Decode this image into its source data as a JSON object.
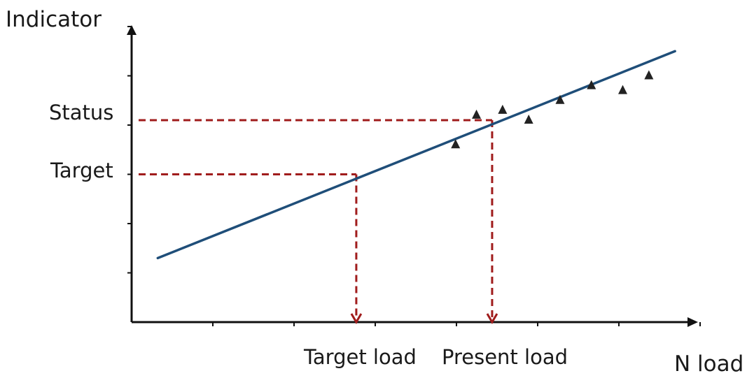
{
  "labels": {
    "y_axis": "Indicator",
    "x_axis": "N load",
    "status": "Status",
    "target": "Target",
    "target_load": "Target load",
    "present_load": "Present load"
  },
  "colors": {
    "axis": "#111111",
    "trend_line": "#1f4e79",
    "guide_lines": "#a01c1c",
    "points": "#222222",
    "text": "#1a1a1a"
  },
  "chart_data": {
    "type": "scatter",
    "xlabel": "N load",
    "ylabel": "Indicator",
    "points": [
      {
        "x": 6.2,
        "y": 3.6
      },
      {
        "x": 6.6,
        "y": 4.2
      },
      {
        "x": 7.1,
        "y": 4.3
      },
      {
        "x": 7.6,
        "y": 4.1
      },
      {
        "x": 8.2,
        "y": 4.5
      },
      {
        "x": 8.8,
        "y": 4.8
      },
      {
        "x": 9.4,
        "y": 4.7
      },
      {
        "x": 9.9,
        "y": 5.0
      }
    ],
    "trend_line": {
      "x0": 0.5,
      "y0": 1.3,
      "x1": 10.4,
      "y1": 5.5
    },
    "reference_lines": [
      {
        "label": "Target",
        "y": 3.0,
        "x": 4.3,
        "x_label": "Target load"
      },
      {
        "label": "Status",
        "y": 4.1,
        "x": 6.9,
        "x_label": "Present load"
      }
    ],
    "xlim": [
      0,
      10.8
    ],
    "ylim": [
      0,
      6.0
    ],
    "grid": false,
    "legend": "none"
  }
}
